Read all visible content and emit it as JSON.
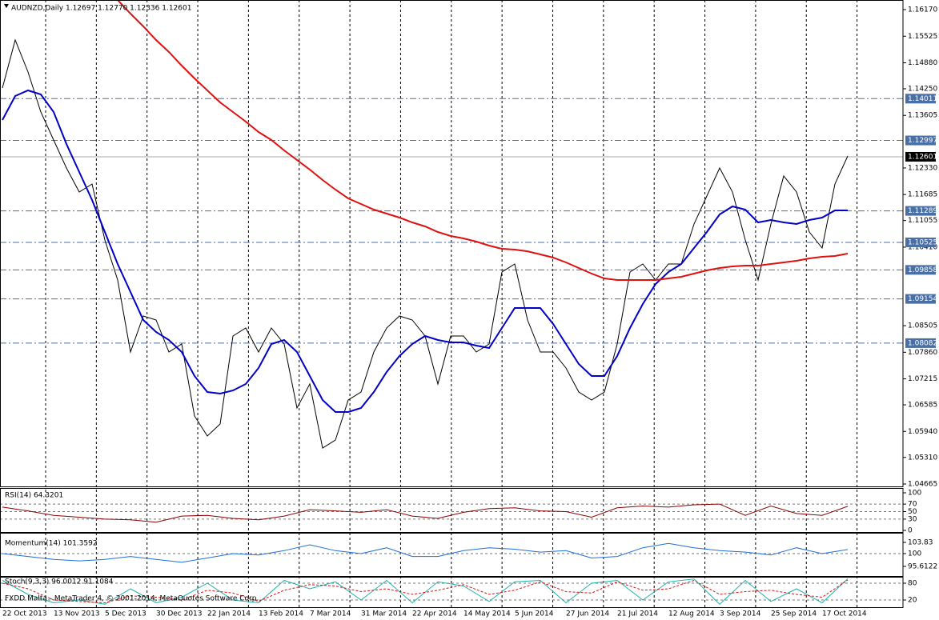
{
  "chart_data": [
    {
      "type": "line",
      "title": "AUDNZD,Daily  1.12697 1.12770 1.12336 1.12601",
      "ylim": [
        1.04607,
        1.16403
      ],
      "yticks": [
        {
          "value": 1.1617,
          "label": "1.16170"
        },
        1.15525,
        {
          "value": 1.1488,
          "label": "1.14880"
        },
        {
          "value": 1.1425,
          "label": "1.14250"
        },
        1.13605,
        {
          "value": 1.1233,
          "label": "1.12330"
        },
        1.11685,
        1.11055,
        {
          "value": 1.1041,
          "label": "1.10410"
        },
        1.08505,
        {
          "value": 1.0786,
          "label": "1.07860"
        },
        1.07215,
        1.06585,
        {
          "value": 1.0594,
          "label": "1.05940"
        },
        {
          "value": 1.0531,
          "label": "1.05310"
        },
        1.04665
      ],
      "date_labels": [
        "22 Oct 2013",
        "13 Nov 2013",
        "5 Dec 2013",
        "30 Dec 2013",
        "22 Jan 2014",
        "13 Feb 2014",
        "7 Mar 2014",
        "31 Mar 2014",
        "22 Apr 2014",
        "14 May 2014",
        "5 Jun 2014",
        "27 Jun 2014",
        "21 Jul 2014",
        "12 Aug 2014",
        "3 Sep 2014",
        "25 Sep 2014",
        "17 Oct 2014"
      ],
      "levels": [
        1.14011,
        1.12997,
        1.11289,
        1.10525,
        1.09858,
        1.09154,
        1.08082
      ],
      "level_color": "#4a6fa5",
      "current": 1.12601,
      "series": [
        {
          "color": "#000000",
          "values": [
            1.14269,
            1.15433,
            1.14657,
            1.13687,
            1.13007,
            1.12328,
            1.11746,
            1.1194,
            1.10582,
            1.09612,
            1.07866,
            1.08739,
            1.08642,
            1.07866,
            1.0806,
            1.06314,
            1.05829,
            1.0612,
            1.08254,
            1.08448,
            1.07866,
            1.08448,
            1.0806,
            1.06508,
            1.0709,
            1.05537,
            1.05731,
            1.06702,
            1.06896,
            1.07866,
            1.08448,
            1.08739,
            1.08642,
            1.08254,
            1.0709,
            1.08254,
            1.08254,
            1.07866,
            1.0806,
            1.09806,
            1.1,
            1.08642,
            1.07866,
            1.07866,
            1.07478,
            1.06896,
            1.06702,
            1.06896,
            1.0806,
            1.09806,
            1.1,
            1.09612,
            1.1,
            1.1,
            1.1097,
            1.11649,
            1.12328,
            1.11746,
            1.10582,
            1.09612,
            1.1097,
            1.12134,
            1.11746,
            1.10776,
            1.10388,
            1.1194,
            1.1262
          ]
        },
        {
          "color": "#0000c8",
          "values": [
            1.13492,
            1.14075,
            1.1421,
            1.14113,
            1.13687,
            1.1291,
            1.12231,
            1.11552,
            1.10776,
            1.1,
            1.09321,
            1.08642,
            1.08351,
            1.08157,
            1.07866,
            1.07284,
            1.06896,
            1.06857,
            1.06934,
            1.0709,
            1.07478,
            1.0806,
            1.08157,
            1.07866,
            1.07284,
            1.06702,
            1.06411,
            1.06411,
            1.06508,
            1.06896,
            1.07381,
            1.07769,
            1.0806,
            1.08254,
            1.08157,
            1.08099,
            1.08099,
            1.08021,
            1.07963,
            1.08448,
            1.08933,
            1.08933,
            1.08933,
            1.08545,
            1.0806,
            1.07575,
            1.07284,
            1.07284,
            1.07769,
            1.08448,
            1.0903,
            1.09515,
            1.09806,
            1.1,
            1.10388,
            1.10776,
            1.11203,
            1.11397,
            1.11319,
            1.11009,
            1.11067,
            1.11009,
            1.1097,
            1.11067,
            1.11125,
            1.113,
            1.113
          ]
        },
        {
          "color": "#e01010",
          "values": [
            null,
            null,
            null,
            null,
            null,
            null,
            null,
            null,
            null,
            1.16403,
            1.16073,
            1.15763,
            1.15433,
            1.15142,
            1.14812,
            1.14501,
            1.1421,
            1.13919,
            1.13687,
            1.13454,
            1.13202,
            1.13007,
            1.12755,
            1.12522,
            1.1229,
            1.12037,
            1.11804,
            1.11591,
            1.11455,
            1.11319,
            1.11222,
            1.11125,
            1.11009,
            1.10912,
            1.10776,
            1.10679,
            1.10621,
            1.10543,
            1.10446,
            1.10369,
            1.10349,
            1.1031,
            1.10233,
            1.10155,
            1.10039,
            1.09903,
            1.09767,
            1.09651,
            1.09612,
            1.09612,
            1.09612,
            1.09612,
            1.09651,
            1.0969,
            1.09767,
            1.09845,
            1.09903,
            1.09942,
            1.09961,
            1.09961,
            1.1,
            1.10039,
            1.10078,
            1.10136,
            1.10175,
            1.10194,
            1.10252
          ]
        }
      ]
    },
    {
      "type": "line",
      "title": "RSI(14) 64.3201",
      "ylim": [
        0,
        100
      ],
      "yticks": [
        100,
        70,
        50,
        30,
        0
      ],
      "levels": [
        70,
        50,
        30
      ],
      "series": [
        {
          "color": "#8b0000",
          "values": [
            62,
            52,
            40,
            35,
            30,
            28,
            22,
            38,
            40,
            32,
            28,
            38,
            55,
            52,
            48,
            55,
            38,
            32,
            48,
            58,
            60,
            52,
            50,
            35,
            60,
            65,
            62,
            68,
            70,
            40,
            65,
            45,
            40,
            64
          ]
        }
      ]
    },
    {
      "type": "line",
      "title": "Momentum(14) 101.3592",
      "ylim": [
        92.6,
        105.47
      ],
      "yticks": [
        103.83,
        100,
        95.6122
      ],
      "levels": [
        100
      ],
      "series": [
        {
          "color": "#1e6fd9",
          "values": [
            100,
            99,
            98,
            97.5,
            98,
            99,
            98,
            97,
            98.5,
            100,
            99.5,
            101,
            103,
            101,
            100,
            102,
            99,
            99,
            101,
            102,
            101.5,
            100.5,
            101,
            98.5,
            99,
            102,
            103.5,
            102,
            101,
            100.5,
            99.5,
            102,
            100,
            101.4
          ]
        }
      ]
    },
    {
      "type": "line",
      "title": "Stoch(9,3,3) 96.0012 91.1084",
      "ylim": [
        0,
        100
      ],
      "yticks": [
        80,
        20
      ],
      "levels": [
        80,
        20
      ],
      "annotation": "FXDD Malta - MetaTrader 4, © 2001-2014, MetaQuotes Software Corp.",
      "series": [
        {
          "color": "#20b2aa",
          "values": [
            90,
            40,
            10,
            20,
            5,
            60,
            10,
            30,
            80,
            20,
            10,
            90,
            60,
            85,
            20,
            90,
            10,
            85,
            70,
            15,
            85,
            90,
            10,
            80,
            90,
            20,
            85,
            95,
            5,
            90,
            15,
            60,
            10,
            96
          ]
        },
        {
          "color": "#e01010",
          "dash": true,
          "values": [
            80,
            60,
            20,
            15,
            10,
            35,
            30,
            20,
            55,
            45,
            15,
            55,
            75,
            70,
            50,
            60,
            40,
            55,
            75,
            40,
            55,
            85,
            50,
            45,
            85,
            55,
            60,
            90,
            40,
            50,
            55,
            40,
            30,
            91
          ]
        }
      ]
    }
  ]
}
